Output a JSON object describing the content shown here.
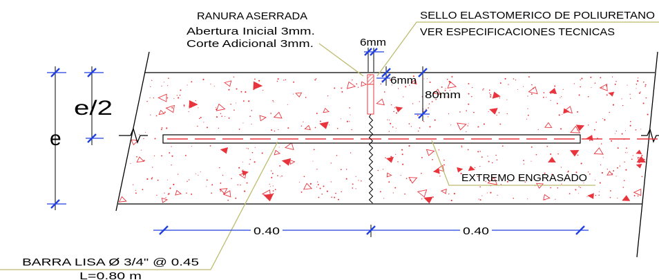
{
  "labels": {
    "saw_cut": {
      "title": "RANURA ASERRADA",
      "line1": "Abertura Inicial 3mm.",
      "line2": "Corte Adicional 3mm."
    },
    "sealant": {
      "line1": "SELLO ELASTOMERICO DE POLIURETANO",
      "line2": "VER ESPECIFICACIONES TECNICAS"
    },
    "greased_end": "EXTREMO ENGRASADO",
    "dowel": {
      "line1": "BARRA LISA Ø 3/4\" @ 0.45",
      "line2": "L=0.80 m"
    }
  },
  "dimensions": {
    "joint_width": "6mm",
    "seal_depth": "6mm",
    "cut_depth": "80mm",
    "half_thickness": "e/2",
    "thickness": "e",
    "left_spacing": "0.40",
    "right_spacing": "0.40"
  },
  "colors": {
    "concrete_marks": "#e8343c",
    "leader": "#bdbb6f",
    "dimension": "#1f3fe0",
    "lines": "#000000"
  }
}
